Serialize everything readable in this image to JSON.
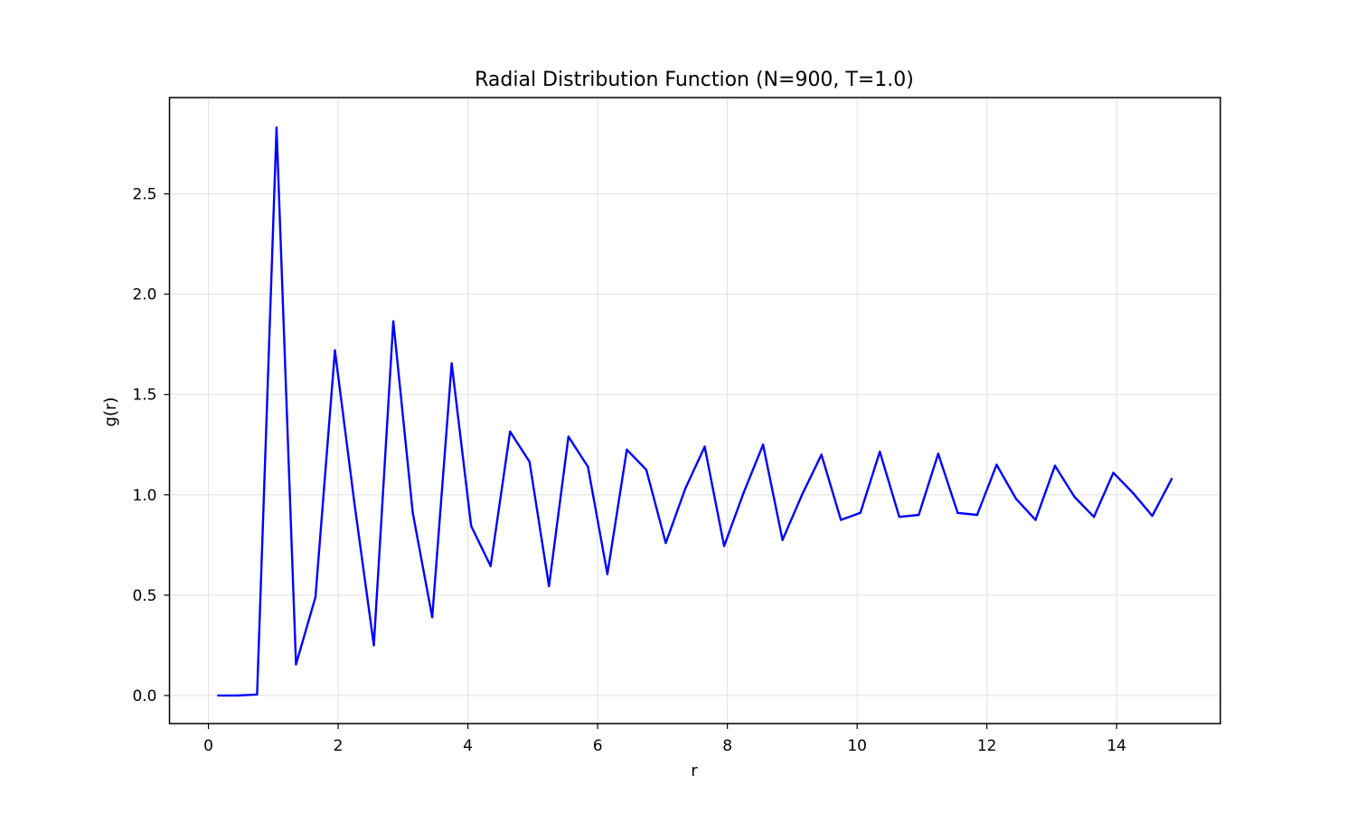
{
  "chart_data": {
    "type": "line",
    "title": "Radial Distribution Function (N=900, T=1.0)",
    "xlabel": "r",
    "ylabel": "g(r)",
    "xlim": [
      -0.6,
      15.6
    ],
    "ylim": [
      -0.14,
      2.98
    ],
    "xticks": [
      0,
      2,
      4,
      6,
      8,
      10,
      12,
      14
    ],
    "xtick_labels": [
      "0",
      "2",
      "4",
      "6",
      "8",
      "10",
      "12",
      "14"
    ],
    "yticks": [
      0.0,
      0.5,
      1.0,
      1.5,
      2.0,
      2.5
    ],
    "ytick_labels": [
      "0.0",
      "0.5",
      "1.0",
      "1.5",
      "2.0",
      "2.5"
    ],
    "grid": true,
    "legend": "none",
    "series": [
      {
        "color": "#0000ff",
        "x": [
          0.15,
          0.45,
          0.75,
          1.05,
          1.35,
          1.65,
          1.95,
          2.25,
          2.55,
          2.85,
          3.15,
          3.45,
          3.75,
          4.05,
          4.35,
          4.65,
          4.95,
          5.25,
          5.55,
          5.85,
          6.15,
          6.45,
          6.75,
          7.05,
          7.35,
          7.65,
          7.95,
          8.25,
          8.55,
          8.85,
          9.15,
          9.45,
          9.75,
          10.05,
          10.35,
          10.65,
          10.95,
          11.25,
          11.55,
          11.85,
          12.15,
          12.45,
          12.75,
          13.05,
          13.35,
          13.65,
          13.95,
          14.25,
          14.55,
          14.85
        ],
        "y": [
          0.0,
          0.0,
          0.005,
          2.83,
          0.155,
          0.49,
          1.72,
          0.96,
          0.25,
          1.865,
          0.91,
          0.39,
          1.655,
          0.845,
          0.645,
          1.315,
          1.165,
          0.545,
          1.29,
          1.14,
          0.605,
          1.225,
          1.125,
          0.76,
          1.03,
          1.24,
          0.745,
          1.01,
          1.25,
          0.775,
          1.0,
          1.2,
          0.875,
          0.91,
          1.215,
          0.89,
          0.9,
          1.205,
          0.91,
          0.9,
          1.15,
          0.98,
          0.875,
          1.145,
          0.99,
          0.89,
          1.11,
          1.01,
          0.895,
          1.08
        ]
      }
    ]
  }
}
